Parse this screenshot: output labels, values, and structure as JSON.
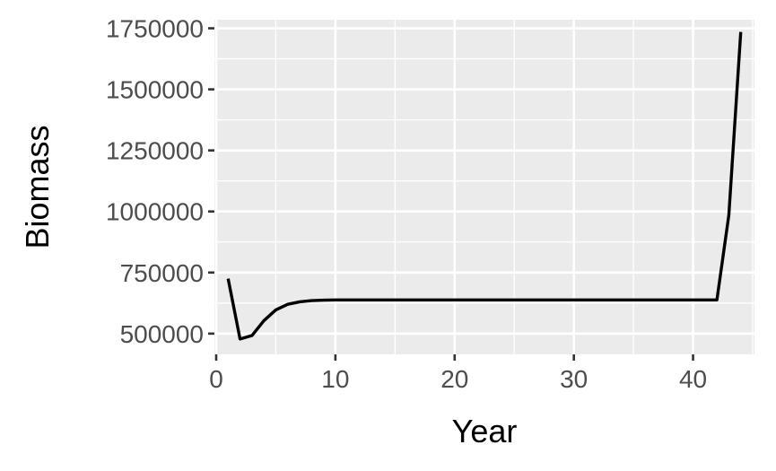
{
  "chart_data": {
    "type": "line",
    "xlabel": "Year",
    "ylabel": "Biomass",
    "xlim": [
      -0.15,
      45.15
    ],
    "ylim": [
      415000,
      1785000
    ],
    "x_ticks": [
      0,
      10,
      20,
      30,
      40
    ],
    "x_minor_ticks": [
      5,
      15,
      25,
      35,
      45
    ],
    "y_ticks": [
      500000,
      750000,
      1000000,
      1250000,
      1500000,
      1750000
    ],
    "y_tick_labels": [
      "500000",
      "750000",
      "1000000",
      "1250000",
      "1500000",
      "1750000"
    ],
    "y_minor_ticks": [
      625000,
      875000,
      1125000,
      1375000,
      1625000
    ],
    "grid": true,
    "background": "#ebebeb",
    "line_color": "#000000",
    "series": [
      {
        "x": [
          1,
          2,
          3,
          4,
          5,
          6,
          7,
          8,
          9,
          10,
          11,
          12,
          13,
          14,
          15,
          16,
          17,
          18,
          19,
          20,
          21,
          22,
          23,
          24,
          25,
          26,
          27,
          28,
          29,
          30,
          31,
          32,
          33,
          34,
          35,
          36,
          37,
          38,
          39,
          40,
          41,
          42,
          43,
          44
        ],
        "values": [
          725000,
          478000,
          492000,
          553000,
          597000,
          620000,
          630000,
          635000,
          637000,
          638000,
          638000,
          638000,
          638000,
          638000,
          638000,
          638000,
          638000,
          638000,
          638000,
          638000,
          638000,
          638000,
          638000,
          638000,
          638000,
          638000,
          638000,
          638000,
          638000,
          638000,
          638000,
          638000,
          638000,
          638000,
          638000,
          638000,
          638000,
          638000,
          638000,
          638000,
          638000,
          638000,
          985000,
          1735000
        ]
      }
    ]
  }
}
